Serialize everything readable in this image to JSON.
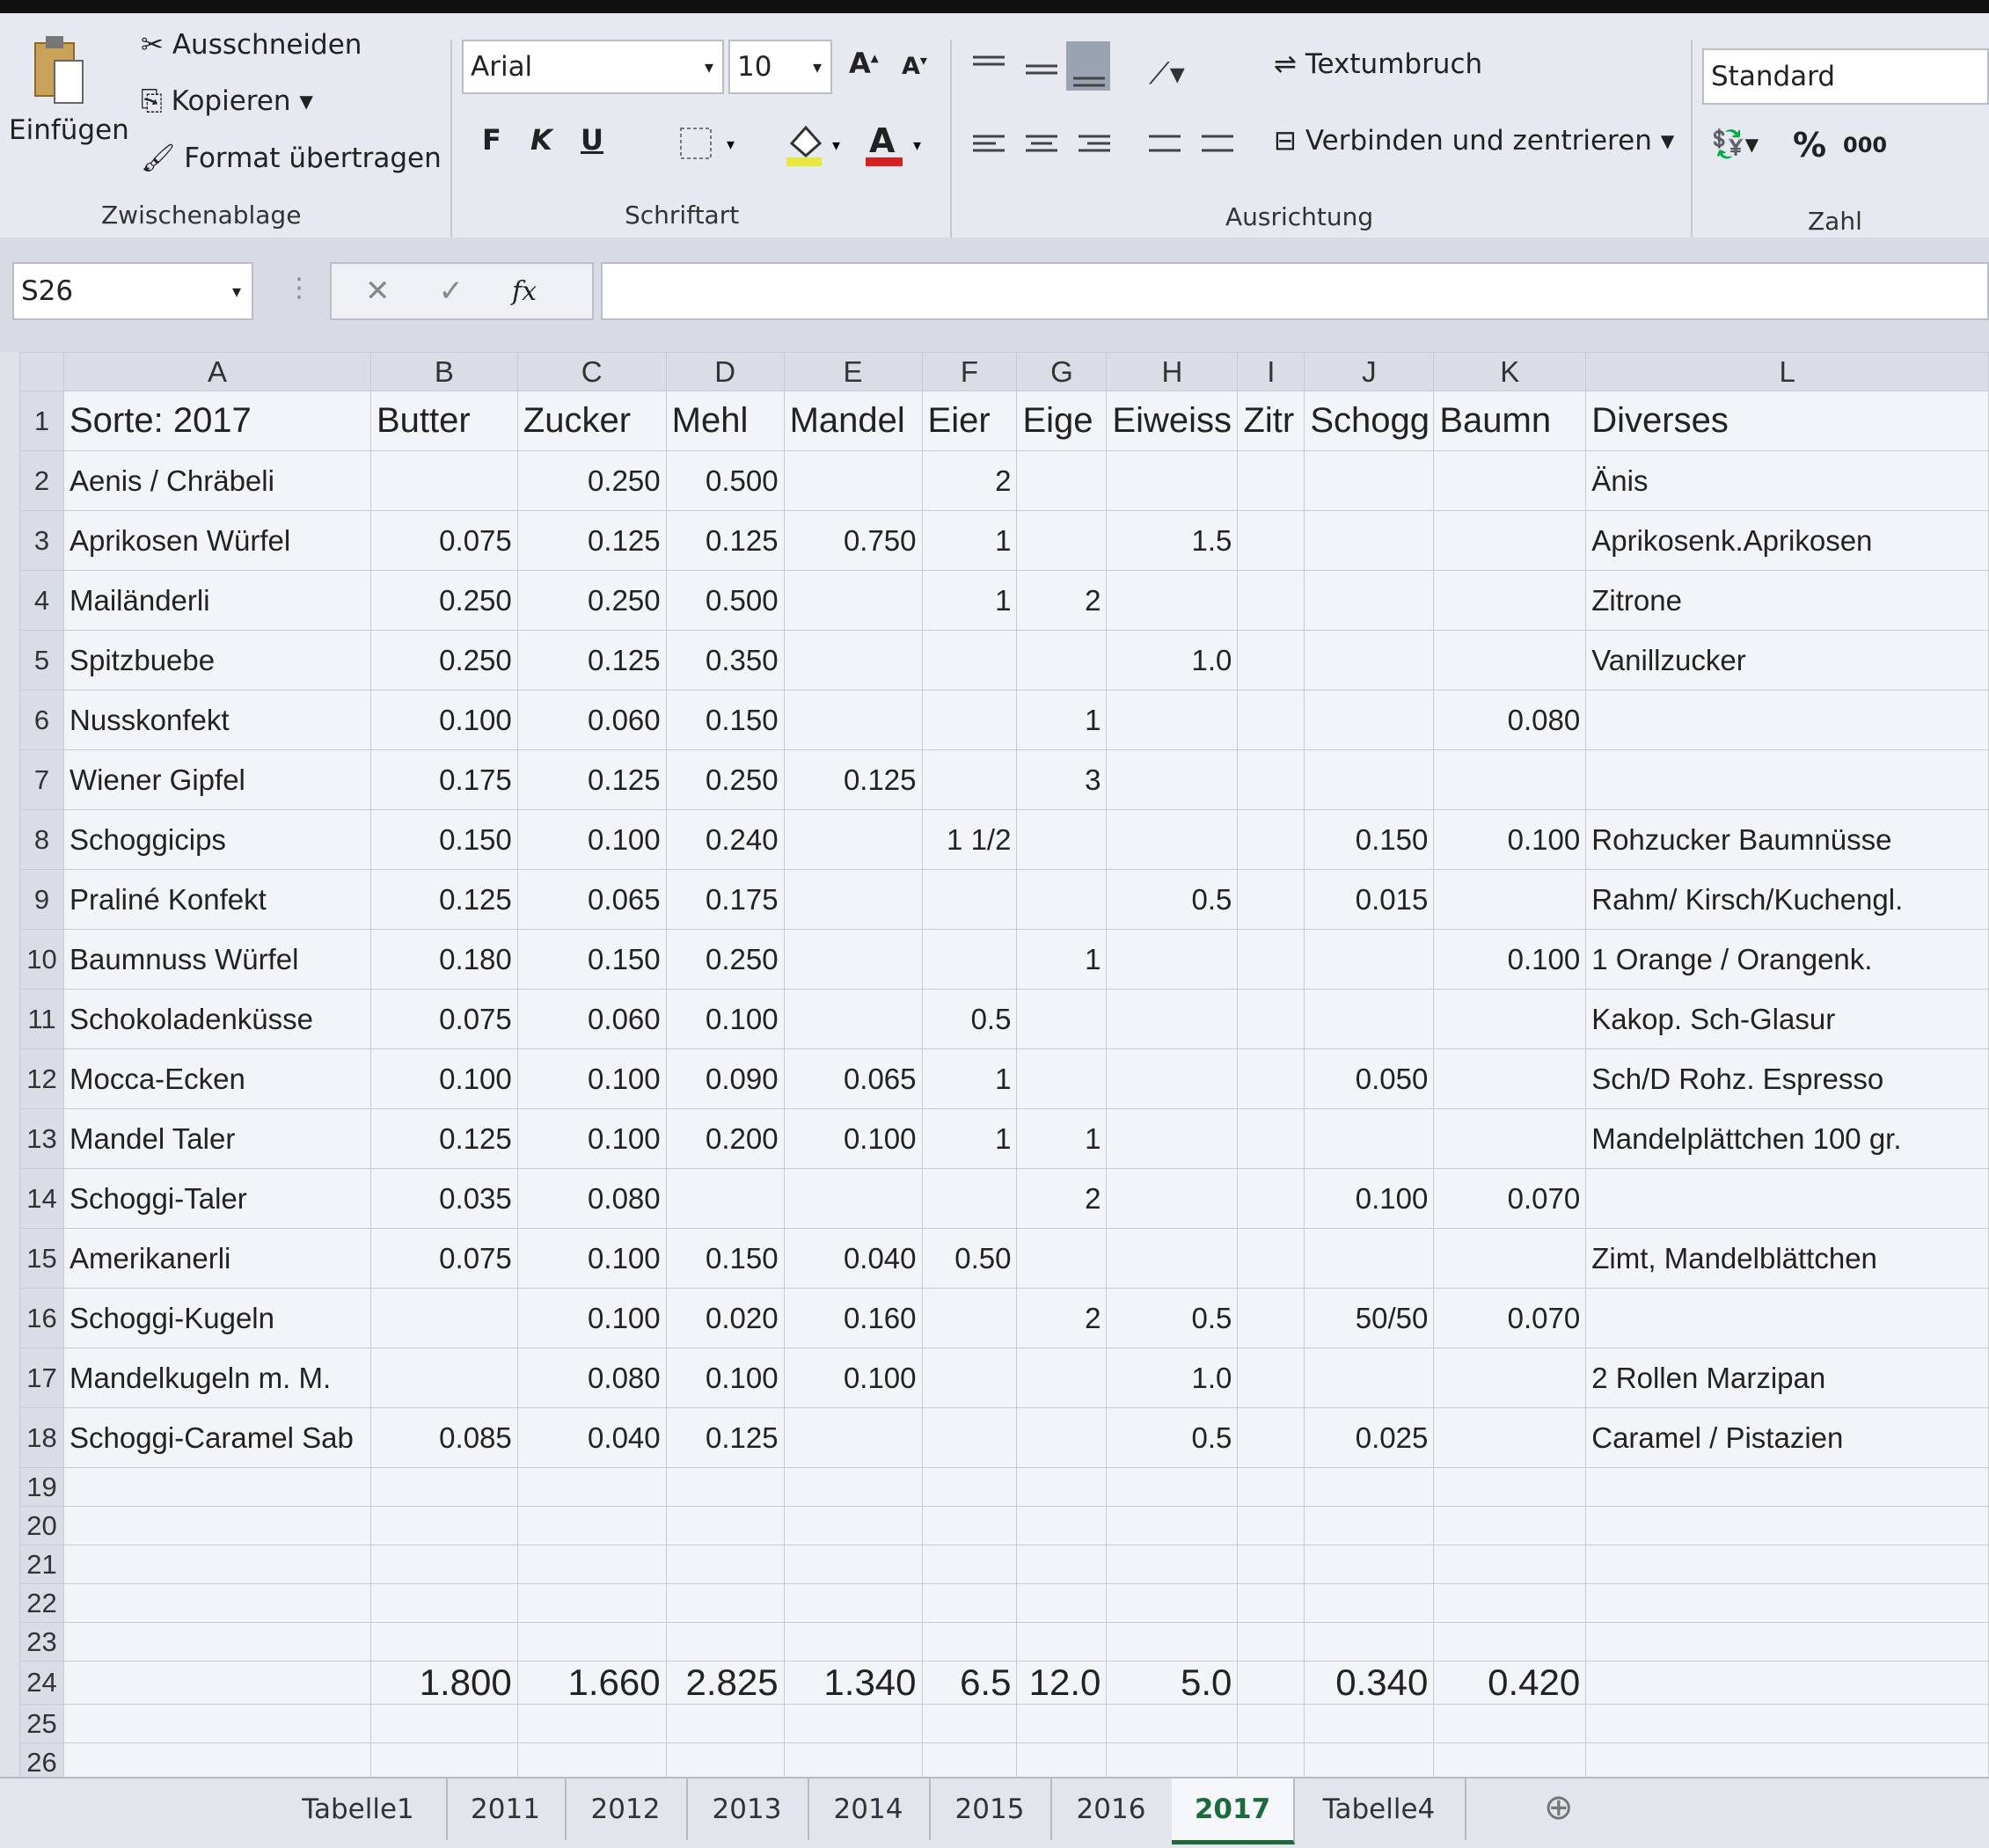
{
  "ribbon": {
    "clipboard": {
      "paste": "Einfügen",
      "cut": "Ausschneiden",
      "copy": "Kopieren",
      "format_painter": "Format übertragen",
      "label": "Zwischenablage"
    },
    "font": {
      "name": "Arial",
      "size": "10",
      "bold": "F",
      "italic": "K",
      "underline": "U",
      "label": "Schriftart"
    },
    "alignment": {
      "wrap": "Textumbruch",
      "merge": "Verbinden und zentrieren",
      "label": "Ausrichtung"
    },
    "number": {
      "format": "Standard",
      "percent": "%",
      "thousands": "000",
      "label": "Zahl"
    }
  },
  "formula_bar": {
    "name_box": "S26",
    "fx": "fx"
  },
  "sheet": {
    "columns": [
      "A",
      "B",
      "C",
      "D",
      "E",
      "F",
      "G",
      "H",
      "I",
      "J",
      "K",
      "L"
    ],
    "row_numbers": [
      1,
      2,
      3,
      4,
      5,
      6,
      7,
      8,
      9,
      10,
      11,
      12,
      13,
      14,
      15,
      16,
      17,
      18,
      19,
      20,
      21,
      22,
      23,
      24,
      25,
      26
    ],
    "rows": [
      [
        "Sorte: 2017",
        "Butter",
        "Zucker",
        "Mehl",
        "Mandel",
        "Eier",
        "Eige",
        "Eiweiss",
        "Zitr",
        "Schogg",
        "Baumn",
        "Diverses"
      ],
      [
        "Aenis / Chräbeli",
        null,
        "0.250",
        "0.500",
        null,
        "2",
        null,
        null,
        null,
        null,
        null,
        "Änis"
      ],
      [
        "Aprikosen Würfel",
        "0.075",
        "0.125",
        "0.125",
        "0.750",
        "1",
        null,
        "1.5",
        null,
        null,
        null,
        "Aprikosenk.Aprikosen"
      ],
      [
        "Mailänderli",
        "0.250",
        "0.250",
        "0.500",
        null,
        "1",
        "2",
        null,
        null,
        null,
        null,
        "Zitrone"
      ],
      [
        "Spitzbuebe",
        "0.250",
        "0.125",
        "0.350",
        null,
        null,
        null,
        "1.0",
        null,
        null,
        null,
        "Vanillzucker"
      ],
      [
        "Nusskonfekt",
        "0.100",
        "0.060",
        "0.150",
        null,
        null,
        "1",
        null,
        null,
        null,
        "0.080",
        null
      ],
      [
        "Wiener Gipfel",
        "0.175",
        "0.125",
        "0.250",
        "0.125",
        null,
        "3",
        null,
        null,
        null,
        null,
        null
      ],
      [
        "Schoggicips",
        "0.150",
        "0.100",
        "0.240",
        null,
        "1 1/2",
        null,
        null,
        null,
        "0.150",
        "0.100",
        "Rohzucker Baumnüsse"
      ],
      [
        "Praliné Konfekt",
        "0.125",
        "0.065",
        "0.175",
        null,
        null,
        null,
        "0.5",
        null,
        "0.015",
        null,
        "Rahm/ Kirsch/Kuchengl."
      ],
      [
        "Baumnuss Würfel",
        "0.180",
        "0.150",
        "0.250",
        null,
        null,
        "1",
        null,
        null,
        null,
        "0.100",
        "1 Orange / Orangenk."
      ],
      [
        "Schokoladenküsse",
        "0.075",
        "0.060",
        "0.100",
        null,
        "0.5",
        null,
        null,
        null,
        null,
        null,
        "Kakop. Sch-Glasur"
      ],
      [
        "Mocca-Ecken",
        "0.100",
        "0.100",
        "0.090",
        "0.065",
        "1",
        null,
        null,
        null,
        "0.050",
        null,
        "Sch/D Rohz. Espresso"
      ],
      [
        "Mandel Taler",
        "0.125",
        "0.100",
        "0.200",
        "0.100",
        "1",
        "1",
        null,
        null,
        null,
        null,
        "Mandelplättchen 100 gr."
      ],
      [
        "Schoggi-Taler",
        "0.035",
        "0.080",
        null,
        null,
        null,
        "2",
        null,
        null,
        "0.100",
        "0.070",
        null
      ],
      [
        "Amerikanerli",
        "0.075",
        "0.100",
        "0.150",
        "0.040",
        "0.50",
        null,
        null,
        null,
        null,
        null,
        "Zimt, Mandelblättchen"
      ],
      [
        "Schoggi-Kugeln",
        null,
        "0.100",
        "0.020",
        "0.160",
        null,
        "2",
        "0.5",
        null,
        "50/50",
        "0.070",
        null
      ],
      [
        "Mandelkugeln m. M.",
        null,
        "0.080",
        "0.100",
        "0.100",
        null,
        null,
        "1.0",
        null,
        null,
        null,
        "2 Rollen Marzipan"
      ],
      [
        "Schoggi-Caramel Sab",
        "0.085",
        "0.040",
        "0.125",
        null,
        null,
        null,
        "0.5",
        null,
        "0.025",
        null,
        "Caramel / Pistazien"
      ],
      [
        null,
        null,
        null,
        null,
        null,
        null,
        null,
        null,
        null,
        null,
        null,
        null
      ],
      [
        null,
        null,
        null,
        null,
        null,
        null,
        null,
        null,
        null,
        null,
        null,
        null
      ],
      [
        null,
        null,
        null,
        null,
        null,
        null,
        null,
        null,
        null,
        null,
        null,
        null
      ],
      [
        null,
        null,
        null,
        null,
        null,
        null,
        null,
        null,
        null,
        null,
        null,
        null
      ],
      [
        null,
        null,
        null,
        null,
        null,
        null,
        null,
        null,
        null,
        null,
        null,
        null
      ],
      [
        null,
        "1.800",
        "1.660",
        "2.825",
        "1.340",
        "6.5",
        "12.0",
        "5.0",
        null,
        "0.340",
        "0.420",
        null
      ],
      [
        null,
        null,
        null,
        null,
        null,
        null,
        null,
        null,
        null,
        null,
        null,
        null
      ],
      [
        null,
        null,
        null,
        null,
        null,
        null,
        null,
        null,
        null,
        null,
        null,
        null
      ]
    ]
  },
  "tabs": [
    "Tabelle1",
    "2011",
    "2012",
    "2013",
    "2014",
    "2015",
    "2016",
    "2017",
    "Tabelle4"
  ],
  "active_tab": 7
}
